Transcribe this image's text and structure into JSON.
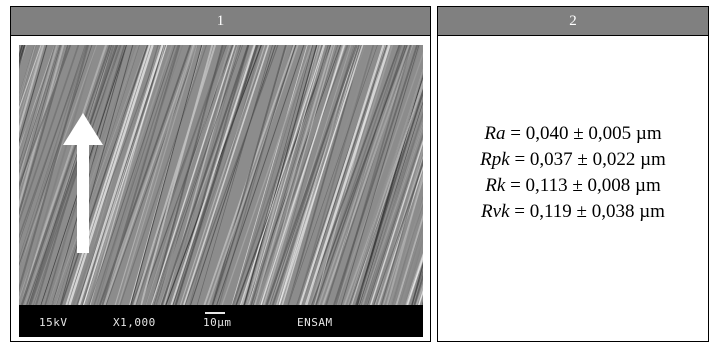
{
  "panels": [
    {
      "label": "1",
      "sem": {
        "accelerating_voltage": "15kV",
        "magnification": "X1,000",
        "scale": "10µm",
        "lab": "ENSAM"
      }
    },
    {
      "label": "2",
      "roughness": [
        {
          "param": "Ra",
          "value": " = 0,040 ± 0,005 µm"
        },
        {
          "param": "Rpk",
          "value": " = 0,037 ± 0,022 µm"
        },
        {
          "param": "Rk",
          "value": " = 0,113 ± 0,008 µm"
        },
        {
          "param": "Rvk",
          "value": " = 0,119 ± 0,038 µm"
        }
      ]
    }
  ]
}
